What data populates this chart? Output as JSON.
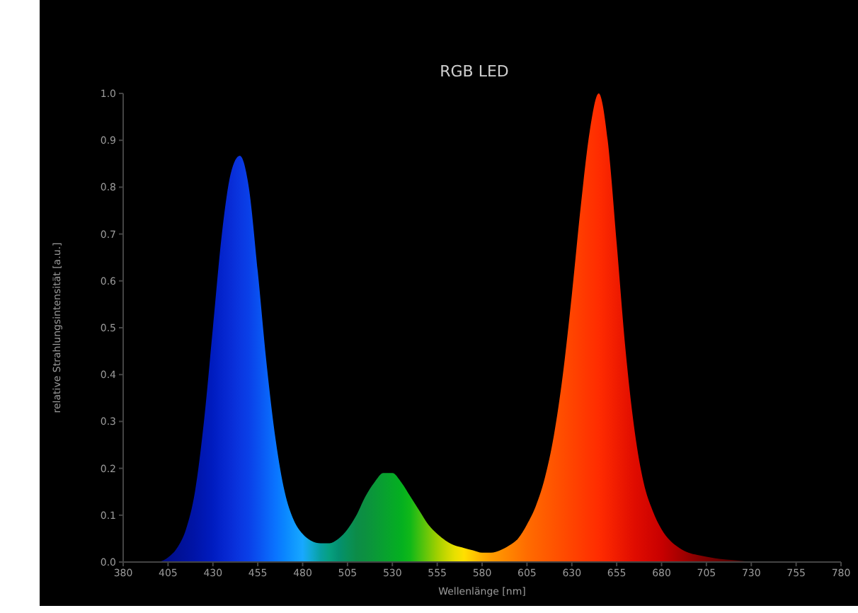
{
  "chart_data": {
    "type": "area",
    "title": "RGB LED",
    "xlabel": "Wellenlänge [nm]",
    "ylabel": "relative Strahlungsintensität [a.u.]",
    "x": [
      400,
      405,
      410,
      415,
      420,
      425,
      430,
      435,
      440,
      445,
      450,
      455,
      460,
      465,
      470,
      475,
      480,
      485,
      490,
      495,
      500,
      505,
      510,
      515,
      520,
      525,
      530,
      535,
      540,
      545,
      550,
      555,
      560,
      565,
      570,
      575,
      580,
      585,
      590,
      595,
      600,
      605,
      610,
      615,
      620,
      625,
      630,
      635,
      640,
      645,
      650,
      655,
      660,
      665,
      670,
      675,
      680,
      685,
      690,
      695,
      700,
      710,
      720,
      730
    ],
    "values": [
      0.0,
      0.01,
      0.03,
      0.07,
      0.15,
      0.3,
      0.5,
      0.7,
      0.83,
      0.867,
      0.8,
      0.62,
      0.42,
      0.26,
      0.15,
      0.09,
      0.06,
      0.045,
      0.04,
      0.04,
      0.05,
      0.07,
      0.1,
      0.14,
      0.17,
      0.19,
      0.19,
      0.17,
      0.14,
      0.11,
      0.08,
      0.06,
      0.045,
      0.035,
      0.03,
      0.025,
      0.02,
      0.02,
      0.025,
      0.035,
      0.05,
      0.08,
      0.12,
      0.18,
      0.27,
      0.4,
      0.57,
      0.76,
      0.92,
      1.0,
      0.9,
      0.68,
      0.45,
      0.28,
      0.17,
      0.11,
      0.07,
      0.045,
      0.03,
      0.02,
      0.015,
      0.008,
      0.004,
      0.0
    ],
    "colors": [
      "#000c80",
      "#000e8a",
      "#001094",
      "#00129e",
      "#0014a8",
      "#0018b4",
      "#001cc0",
      "#0424cc",
      "#082cd6",
      "#0a36e0",
      "#0a40e8",
      "#0a50f0",
      "#0a62f8",
      "#0a74ff",
      "#0a86ff",
      "#1098ff",
      "#18a8ff",
      "#10a8d0",
      "#08a0a0",
      "#06a080",
      "#049070",
      "#08905a",
      "#0c8c48",
      "#0c9040",
      "#0a9838",
      "#08a030",
      "#06a828",
      "#04b020",
      "#10b818",
      "#40c010",
      "#70c808",
      "#a0d000",
      "#c8d800",
      "#e8e000",
      "#ffe000",
      "#ffc800",
      "#ffb000",
      "#ff9c00",
      "#ff9000",
      "#ff8400",
      "#ff7800",
      "#ff6c00",
      "#ff6400",
      "#ff5c00",
      "#ff5400",
      "#ff4c00",
      "#ff4400",
      "#ff3c00",
      "#ff3400",
      "#ff2c00",
      "#f82400",
      "#f01c00",
      "#e81400",
      "#e00c00",
      "#d80800",
      "#d00400",
      "#c80000",
      "#b80000",
      "#a80000",
      "#980000",
      "#880000",
      "#700000",
      "#580000",
      "#400000"
    ],
    "xlim": [
      380,
      780
    ],
    "xticks": [
      380,
      405,
      430,
      455,
      480,
      505,
      530,
      555,
      580,
      605,
      630,
      655,
      680,
      705,
      730,
      755,
      780
    ],
    "ylim": [
      0,
      1
    ],
    "yticks": [
      {
        "value": 0,
        "label": "0.0"
      },
      0.1,
      0.2,
      0.3,
      0.4,
      0.5,
      0.6,
      0.7,
      0.8,
      0.9,
      {
        "value": 1,
        "label": "1.0"
      }
    ],
    "grid": false,
    "legend": false
  }
}
